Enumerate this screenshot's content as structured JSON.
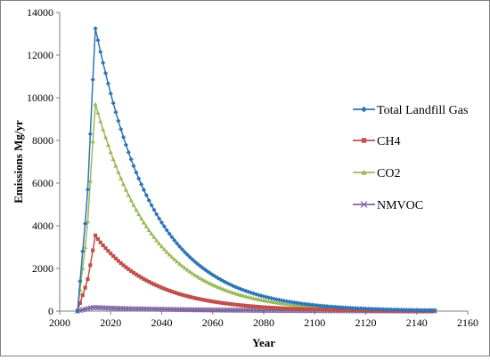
{
  "chart_data": {
    "type": "line",
    "xlabel": "Year",
    "ylabel": "Emissions  Mg/yr",
    "xlim": [
      2000,
      2160
    ],
    "ylim": [
      0,
      14000
    ],
    "x_ticks": [
      2000,
      2020,
      2040,
      2060,
      2080,
      2100,
      2120,
      2140,
      2160
    ],
    "y_ticks": [
      0,
      2000,
      4000,
      6000,
      8000,
      10000,
      12000,
      14000
    ],
    "x_tick_labels": [
      "2000",
      "2020",
      "2040",
      "2060",
      "2080",
      "2100",
      "2120",
      "2140",
      "2160"
    ],
    "y_tick_labels": [
      "0",
      "2000",
      "4000",
      "6000",
      "8000",
      "10000",
      "12000",
      "14000"
    ],
    "grid": false,
    "legend_position": "right",
    "x_start": 2007,
    "x_end": 2147,
    "peak_year": 2014,
    "series": [
      {
        "name": "Total Landfill Gas",
        "color": "#2e75b6",
        "marker": "diamond",
        "x": [
          2007,
          2008,
          2009,
          2010,
          2011,
          2012,
          2013,
          2014,
          2015,
          2016,
          2018,
          2020,
          2025,
          2030,
          2040,
          2050,
          2060,
          2070,
          2080,
          2090,
          2100,
          2110,
          2120,
          2130,
          2140,
          2147
        ],
        "y": [
          0,
          1400,
          2800,
          4100,
          5700,
          8300,
          10850,
          13250,
          12700,
          12150,
          11150,
          10200,
          8150,
          6500,
          4150,
          2650,
          1700,
          1080,
          690,
          440,
          280,
          180,
          115,
          74,
          47,
          35
        ]
      },
      {
        "name": "CH4",
        "color": "#c0504d",
        "marker": "square",
        "x": [
          2007,
          2008,
          2009,
          2010,
          2011,
          2012,
          2013,
          2014,
          2015,
          2016,
          2018,
          2020,
          2025,
          2030,
          2040,
          2050,
          2060,
          2070,
          2080,
          2090,
          2100,
          2110,
          2120,
          2130,
          2140,
          2147
        ],
        "y": [
          0,
          380,
          750,
          1100,
          1500,
          2150,
          2850,
          3550,
          3380,
          3220,
          2950,
          2700,
          2150,
          1720,
          1100,
          700,
          450,
          290,
          185,
          118,
          75,
          48,
          31,
          20,
          13,
          9
        ]
      },
      {
        "name": "CO2",
        "color": "#9bbb59",
        "marker": "triangle",
        "x": [
          2007,
          2008,
          2009,
          2010,
          2011,
          2012,
          2013,
          2014,
          2015,
          2016,
          2018,
          2020,
          2025,
          2030,
          2040,
          2050,
          2060,
          2070,
          2080,
          2090,
          2100,
          2110,
          2120,
          2130,
          2140,
          2147
        ],
        "y": [
          0,
          1000,
          2000,
          3000,
          4200,
          6100,
          7950,
          9700,
          9300,
          8900,
          8150,
          7450,
          5950,
          4750,
          3030,
          1940,
          1240,
          790,
          505,
          322,
          205,
          131,
          84,
          54,
          34,
          25
        ]
      },
      {
        "name": "NMVOC",
        "color": "#8064a2",
        "marker": "x",
        "x": [
          2007,
          2008,
          2009,
          2010,
          2011,
          2012,
          2013,
          2014,
          2015,
          2016,
          2018,
          2020,
          2025,
          2030,
          2040,
          2050,
          2060,
          2070,
          2080,
          2090,
          2100,
          2110,
          2120,
          2130,
          2140,
          2147
        ],
        "y": [
          0,
          30,
          60,
          90,
          120,
          150,
          165,
          170,
          165,
          160,
          150,
          140,
          120,
          105,
          85,
          68,
          54,
          43,
          34,
          27,
          21,
          16,
          12,
          9,
          6,
          5
        ]
      }
    ]
  }
}
